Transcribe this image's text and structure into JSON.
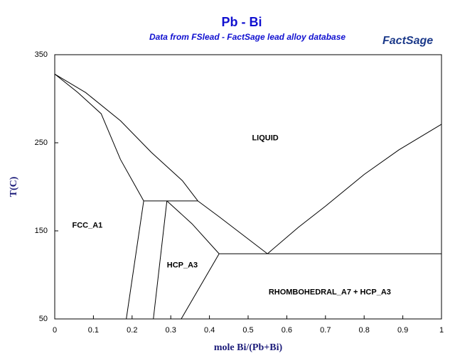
{
  "chart_data": {
    "type": "line",
    "title": "Pb - Bi",
    "subtitle": "Data from FSlead - FactSage lead alloy database",
    "logo": "FactSage",
    "x_label": "mole Bi/(Pb+Bi)",
    "y_label": "T(C)",
    "xlim": [
      0,
      1
    ],
    "ylim": [
      50,
      350
    ],
    "xticks": [
      0,
      0.1,
      0.2,
      0.3,
      0.4,
      0.5,
      0.6,
      0.7,
      0.8,
      0.9,
      1
    ],
    "yticks": [
      50,
      150,
      250,
      350
    ],
    "color": "#000000",
    "series": [
      {
        "x": [
          0,
          0.08,
          0.17,
          0.25,
          0.33,
          0.37
        ],
        "values": [
          328,
          307,
          275,
          239,
          207,
          184
        ]
      },
      {
        "x": [
          0,
          0.06,
          0.12,
          0.17,
          0.23
        ],
        "values": [
          328,
          307,
          283,
          231,
          184
        ]
      },
      {
        "x": [
          0.23,
          0.37
        ],
        "values": [
          184,
          184
        ]
      },
      {
        "x": [
          0.23,
          0.185
        ],
        "values": [
          184,
          50
        ]
      },
      {
        "x": [
          0.29,
          0.255
        ],
        "values": [
          184,
          50
        ]
      },
      {
        "x": [
          0.29,
          0.355,
          0.425
        ],
        "values": [
          184,
          158,
          124
        ]
      },
      {
        "x": [
          0.425,
          0.327
        ],
        "values": [
          124,
          50
        ]
      },
      {
        "x": [
          0.37,
          0.425,
          0.55
        ],
        "values": [
          184,
          166,
          124
        ]
      },
      {
        "x": [
          0.425,
          1
        ],
        "values": [
          124,
          124
        ]
      },
      {
        "x": [
          0.55,
          0.63,
          0.7,
          0.8,
          0.89,
          1
        ],
        "values": [
          124,
          154,
          178,
          214,
          242,
          271
        ]
      }
    ],
    "annotations": [
      {
        "text": "LIQUID",
        "x": 0.51,
        "y": 255
      },
      {
        "text": "FCC_A1",
        "x": 0.045,
        "y": 156
      },
      {
        "text": "HCP_A3",
        "x": 0.29,
        "y": 111
      },
      {
        "text": "RHOMBOHEDRAL_A7 + HCP_A3",
        "x": 0.553,
        "y": 80
      }
    ]
  }
}
